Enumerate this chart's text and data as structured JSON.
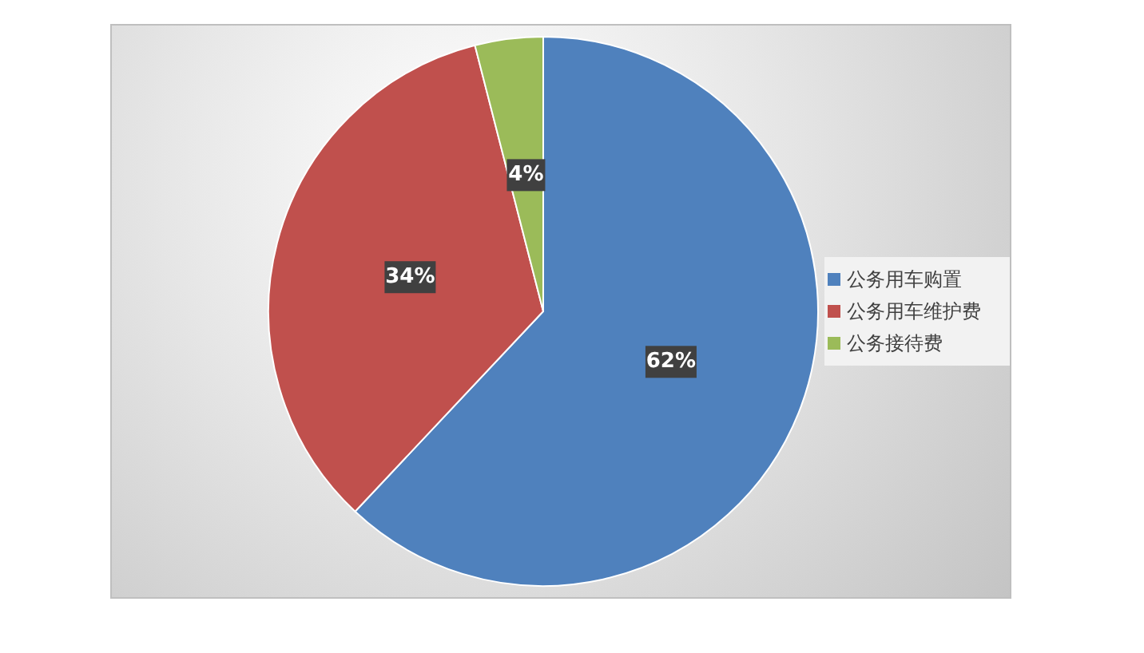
{
  "chart_data": {
    "type": "pie",
    "categories": [
      "公务用车购置",
      "公务用车维护费",
      "公务接待费"
    ],
    "values": [
      62,
      34,
      4
    ],
    "colors": [
      "#4f81bd",
      "#c0504d",
      "#9bbb59"
    ],
    "value_labels": [
      "62%",
      "34%",
      "4%"
    ],
    "legend": "right"
  }
}
